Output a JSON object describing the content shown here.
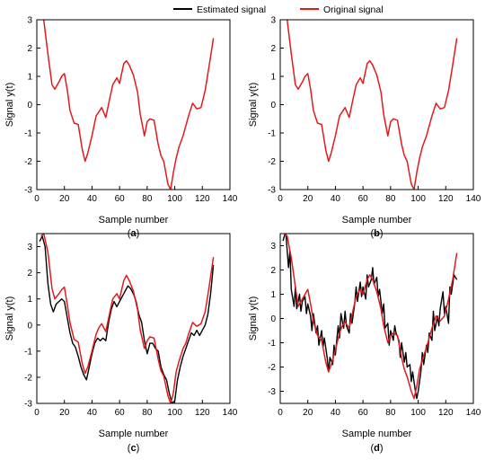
{
  "legend": {
    "estimated_label": "Estimated signal",
    "original_label": "Original signal",
    "estimated_color": "#000000",
    "original_color": "#e31a1c",
    "placement": "top-center"
  },
  "chart_data": [
    {
      "type": "line",
      "panel_label": "a",
      "xlabel": "Sample number",
      "ylabel": "Signal y(t)",
      "xlim": [
        0,
        140
      ],
      "ylim": [
        -3,
        3
      ],
      "xticks": [
        0,
        20,
        40,
        60,
        80,
        100,
        120,
        140
      ],
      "yticks": [
        -3,
        -2,
        -1,
        0,
        1,
        2,
        3
      ],
      "grid": false,
      "series": [
        {
          "name": "Original signal",
          "role": "original",
          "x": [
            5,
            8,
            11,
            13,
            16,
            18,
            20,
            22,
            24,
            27,
            30,
            33,
            35,
            37,
            40,
            43,
            45,
            47,
            50,
            53,
            55,
            58,
            60,
            63,
            65,
            67,
            70,
            73,
            75,
            78,
            80,
            82,
            85,
            88,
            90,
            92,
            95,
            97,
            99,
            101,
            103,
            106,
            108,
            110,
            113,
            116,
            119,
            122,
            125,
            128
          ],
          "y": [
            3,
            1.8,
            0.7,
            0.55,
            0.8,
            1,
            1.1,
            0.55,
            -0.2,
            -0.65,
            -0.7,
            -1.6,
            -2,
            -1.7,
            -1.1,
            -0.4,
            -0.25,
            -0.1,
            -0.45,
            0.25,
            0.7,
            0.95,
            0.75,
            1.45,
            1.55,
            1.4,
            1.05,
            0.45,
            -0.35,
            -1.1,
            -0.6,
            -0.5,
            -0.55,
            -1.4,
            -1.8,
            -2,
            -2.8,
            -3,
            -2.4,
            -1.9,
            -1.5,
            -1.1,
            -0.75,
            -0.4,
            0.05,
            -0.15,
            -0.1,
            0.5,
            1.4,
            2.35
          ]
        }
      ]
    },
    {
      "type": "line",
      "panel_label": "b",
      "xlabel": "Sample number",
      "ylabel": "Signal y(t)",
      "xlim": [
        0,
        140
      ],
      "ylim": [
        -3,
        3
      ],
      "xticks": [
        0,
        20,
        40,
        60,
        80,
        100,
        120,
        140
      ],
      "yticks": [
        -3,
        -2,
        -1,
        0,
        1,
        2,
        3
      ],
      "grid": false,
      "series": [
        {
          "name": "Original signal",
          "role": "original",
          "x": [
            5,
            8,
            11,
            13,
            16,
            18,
            20,
            22,
            24,
            27,
            30,
            33,
            35,
            37,
            40,
            43,
            45,
            47,
            50,
            53,
            55,
            58,
            60,
            63,
            65,
            67,
            70,
            73,
            75,
            78,
            80,
            82,
            85,
            88,
            90,
            92,
            95,
            97,
            99,
            101,
            103,
            106,
            108,
            110,
            113,
            116,
            119,
            122,
            125,
            128
          ],
          "y": [
            3,
            1.8,
            0.7,
            0.55,
            0.8,
            1,
            1.1,
            0.55,
            -0.2,
            -0.65,
            -0.7,
            -1.6,
            -2,
            -1.7,
            -1.1,
            -0.4,
            -0.25,
            -0.1,
            -0.45,
            0.25,
            0.7,
            0.95,
            0.75,
            1.45,
            1.55,
            1.4,
            1.05,
            0.45,
            -0.35,
            -1.1,
            -0.6,
            -0.5,
            -0.55,
            -1.4,
            -1.8,
            -2,
            -2.8,
            -3,
            -2.4,
            -1.9,
            -1.5,
            -1.1,
            -0.75,
            -0.4,
            0.05,
            -0.15,
            -0.1,
            0.5,
            1.4,
            2.35
          ]
        }
      ]
    },
    {
      "type": "line",
      "panel_label": "c",
      "xlabel": "Sample number",
      "ylabel": "Signal y(t)",
      "xlim": [
        0,
        140
      ],
      "ylim": [
        -3,
        3.5
      ],
      "xticks": [
        0,
        20,
        40,
        60,
        80,
        100,
        120,
        140
      ],
      "yticks": [
        -3,
        -2,
        -1,
        0,
        1,
        2,
        3
      ],
      "grid": false,
      "series": [
        {
          "name": "Original signal",
          "role": "original",
          "x": [
            3,
            5,
            8,
            11,
            13,
            16,
            18,
            20,
            22,
            24,
            27,
            30,
            33,
            35,
            37,
            40,
            43,
            45,
            47,
            50,
            53,
            55,
            58,
            60,
            63,
            65,
            67,
            70,
            73,
            75,
            78,
            80,
            82,
            85,
            88,
            90,
            92,
            95,
            97,
            99,
            101,
            103,
            106,
            108,
            110,
            113,
            116,
            119,
            122,
            125,
            128
          ],
          "y": [
            3.4,
            3.5,
            2.8,
            1.4,
            1,
            1.2,
            1.35,
            1.45,
            0.8,
            0.1,
            -0.55,
            -0.65,
            -1.5,
            -1.85,
            -1.6,
            -1,
            -0.35,
            -0.1,
            0.05,
            -0.25,
            0.5,
            1,
            1.2,
            1,
            1.7,
            1.9,
            1.7,
            1.3,
            0.6,
            -0.2,
            -0.9,
            -0.6,
            -0.45,
            -0.5,
            -1.3,
            -1.75,
            -1.95,
            -2.7,
            -3,
            -2.6,
            -1.8,
            -1.4,
            -0.9,
            -0.7,
            -0.35,
            0.1,
            -0.05,
            0.05,
            0.5,
            1.5,
            2.6
          ]
        },
        {
          "name": "Estimated signal",
          "role": "estimated",
          "x": [
            2,
            4,
            6,
            8,
            10,
            12,
            14,
            16,
            18,
            20,
            22,
            24,
            26,
            28,
            30,
            32,
            34,
            36,
            38,
            40,
            42,
            44,
            46,
            48,
            50,
            52,
            54,
            56,
            58,
            60,
            62,
            64,
            66,
            68,
            70,
            72,
            74,
            76,
            78,
            80,
            82,
            84,
            86,
            88,
            90,
            92,
            94,
            96,
            98,
            100,
            102,
            104,
            106,
            108,
            110,
            112,
            114,
            116,
            118,
            120,
            122,
            124,
            126,
            128
          ],
          "y": [
            3.2,
            3.4,
            3,
            1.6,
            0.8,
            0.5,
            0.8,
            0.9,
            1,
            0.9,
            0.3,
            -0.3,
            -0.7,
            -0.85,
            -1.2,
            -1.6,
            -1.9,
            -2.1,
            -1.6,
            -1.1,
            -0.7,
            -0.5,
            -0.6,
            -0.5,
            -0.6,
            0.1,
            0.6,
            0.9,
            0.7,
            0.9,
            1.1,
            1.3,
            1.5,
            1.4,
            1.2,
            0.9,
            0.4,
            0.1,
            -0.6,
            -1.1,
            -0.7,
            -0.7,
            -0.9,
            -1,
            -1.6,
            -1.9,
            -2.1,
            -2.6,
            -3,
            -2.9,
            -2.1,
            -1.6,
            -1.2,
            -0.9,
            -0.6,
            -0.3,
            -0.4,
            -0.2,
            -0.4,
            -0.2,
            0,
            0.4,
            1.2,
            2.3
          ]
        }
      ]
    },
    {
      "type": "line",
      "panel_label": "d",
      "xlabel": "Sample number",
      "ylabel": "Signal y(t)",
      "xlim": [
        0,
        140
      ],
      "ylim": [
        -3.5,
        3.5
      ],
      "xticks": [
        0,
        20,
        40,
        60,
        80,
        100,
        120,
        140
      ],
      "yticks": [
        -3,
        -2,
        -1,
        0,
        1,
        2,
        3
      ],
      "grid": false,
      "series": [
        {
          "name": "Original signal",
          "role": "original",
          "x": [
            3,
            5,
            8,
            11,
            13,
            16,
            18,
            20,
            22,
            24,
            27,
            30,
            33,
            35,
            37,
            40,
            43,
            45,
            47,
            50,
            53,
            55,
            58,
            60,
            63,
            65,
            67,
            70,
            73,
            75,
            78,
            80,
            82,
            85,
            88,
            90,
            92,
            95,
            97,
            99,
            101,
            103,
            106,
            108,
            110,
            113,
            116,
            119,
            122,
            125,
            128
          ],
          "y": [
            3.5,
            3.4,
            2.5,
            1.3,
            0.5,
            0.8,
            1,
            1.2,
            0.6,
            -0.1,
            -0.7,
            -0.9,
            -1.8,
            -2.2,
            -1.9,
            -1.3,
            -0.6,
            -0.3,
            -0.15,
            -0.4,
            0.4,
            0.9,
            1.2,
            1,
            1.6,
            1.8,
            1.6,
            1.1,
            0.4,
            -0.3,
            -1,
            -0.7,
            -0.6,
            -0.7,
            -1.6,
            -2.1,
            -2.4,
            -3,
            -3.3,
            -2.8,
            -2.1,
            -1.7,
            -1.2,
            -0.8,
            -0.4,
            0.1,
            -0.1,
            0.1,
            0.8,
            1.6,
            2.7
          ]
        },
        {
          "name": "Estimated signal",
          "role": "estimated",
          "x": [
            2,
            4,
            6,
            7,
            8,
            10,
            11,
            12,
            14,
            15,
            16,
            18,
            19,
            20,
            22,
            23,
            24,
            26,
            27,
            28,
            30,
            31,
            32,
            34,
            35,
            36,
            38,
            39,
            40,
            42,
            43,
            44,
            46,
            47,
            48,
            50,
            51,
            52,
            54,
            55,
            56,
            58,
            59,
            60,
            62,
            63,
            64,
            66,
            67,
            68,
            70,
            71,
            72,
            74,
            75,
            76,
            78,
            79,
            80,
            82,
            83,
            84,
            86,
            87,
            88,
            90,
            91,
            92,
            94,
            95,
            96,
            98,
            99,
            100,
            102,
            103,
            104,
            106,
            107,
            108,
            110,
            111,
            112,
            114,
            115,
            116,
            118,
            119,
            120,
            122,
            123,
            124,
            126,
            128
          ],
          "y": [
            3.2,
            3.6,
            2.1,
            2.8,
            1.2,
            0.5,
            1.3,
            0.4,
            1,
            0.3,
            0.7,
            0.9,
            0.2,
            0.6,
            0.1,
            -0.5,
            0.2,
            -0.6,
            -0.3,
            -1.1,
            -0.5,
            -1.2,
            -0.8,
            -1.6,
            -2.2,
            -1.6,
            -1.9,
            -1.1,
            -1.5,
            -0.3,
            -0.8,
            0.2,
            -0.4,
            0.3,
            -0.3,
            -0.6,
            0.2,
            -0.2,
            0.6,
            1.3,
            0.7,
            1.5,
            0.9,
            1.3,
            0.8,
            1.8,
            1.3,
            1.6,
            2.1,
            1.4,
            1.7,
            0.9,
            1.2,
            0.2,
            0.6,
            -0.4,
            -0.2,
            -1.1,
            -0.5,
            -0.9,
            -0.3,
            -0.6,
            -0.9,
            -1.6,
            -1,
            -1.8,
            -1.4,
            -2,
            -1.9,
            -2.6,
            -2.2,
            -3,
            -3.3,
            -3,
            -2.2,
            -1.4,
            -1.9,
            -1.1,
            -1.4,
            -0.6,
            -0.9,
            0.3,
            -0.5,
            0.1,
            -0.3,
            0.4,
            1.1,
            0.2,
            0.5,
            -0.2,
            1.3,
            1,
            1.8,
            1.6
          ]
        }
      ]
    }
  ]
}
